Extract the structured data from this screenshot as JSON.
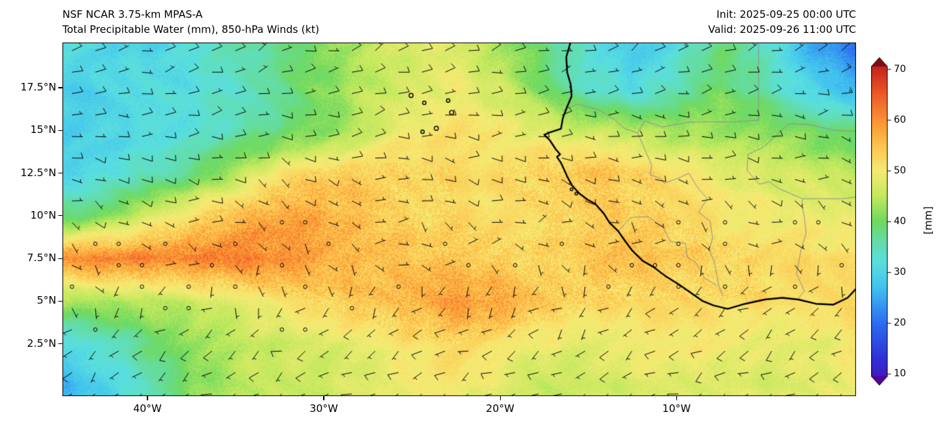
{
  "header": {
    "model_title": "NSF NCAR 3.75-km MPAS-A",
    "field_title": "Total Precipitable Water (mm), 850-hPa Winds (kt)",
    "init_time": "Init: 2025-09-25 00:00 UTC",
    "valid_time": "Valid: 2025-09-26 11:00 UTC"
  },
  "chart_data": {
    "type": "heatmap",
    "title": "Total Precipitable Water (mm), 850-hPa Winds (kt)",
    "model": "NSF NCAR 3.75-km MPAS-A",
    "init": "2025-09-25 00:00 UTC",
    "valid": "2025-09-26 11:00 UTC",
    "units": "mm",
    "overlay": "850-hPa wind barbs (kt)",
    "lon_range": [
      -44.82,
      0.18
    ],
    "lat_range": [
      -0.56,
      20.15
    ],
    "x_ticks": {
      "values": [
        -40,
        -30,
        -20,
        -10
      ],
      "labels": [
        "40°W",
        "30°W",
        "20°W",
        "10°W"
      ]
    },
    "y_ticks": {
      "values": [
        17.5,
        15,
        12.5,
        10,
        7.5,
        5,
        2.5
      ],
      "labels": [
        "17.5°N",
        "15°N",
        "12.5°N",
        "10°N",
        "7.5°N",
        "5°N",
        "2.5°N"
      ]
    },
    "colorbar": {
      "unit_label": "[mm]",
      "tick_values": [
        10,
        20,
        30,
        40,
        50,
        60,
        70
      ],
      "body_range": [
        9.5,
        70.5
      ],
      "extend": "both"
    },
    "colormap_stops": [
      [
        5,
        "#56009d"
      ],
      [
        13,
        "#3130d8"
      ],
      [
        20,
        "#2b6df2"
      ],
      [
        27,
        "#41c2ef"
      ],
      [
        32,
        "#5adfdf"
      ],
      [
        37,
        "#66dc9a"
      ],
      [
        40,
        "#6ed95f"
      ],
      [
        45,
        "#c3e95e"
      ],
      [
        50,
        "#f6ea74"
      ],
      [
        55,
        "#fcc44e"
      ],
      [
        60,
        "#fa9133"
      ],
      [
        65,
        "#ee5c27"
      ],
      [
        70,
        "#c9271e"
      ],
      [
        75,
        "#7e0d12"
      ]
    ],
    "tpw_grid": {
      "lons": [
        -45,
        -42.5,
        -40,
        -37.5,
        -35,
        -32.5,
        -30,
        -27.5,
        -25,
        -22.5,
        -20,
        -17.5,
        -15,
        -12.5,
        -10,
        -7.5,
        -5,
        -2.5,
        0
      ],
      "lats": [
        20,
        17.5,
        15,
        12.5,
        10,
        7.5,
        5,
        2.5,
        0
      ],
      "values_mm": [
        [
          31,
          31,
          30,
          32,
          35,
          38,
          42,
          45,
          47,
          48,
          44,
          38,
          32,
          28,
          32,
          39,
          33,
          26,
          21
        ],
        [
          29,
          30,
          31,
          32,
          34,
          37,
          41,
          45,
          48,
          49,
          46,
          40,
          34,
          31,
          34,
          40,
          36,
          30,
          25
        ],
        [
          28,
          30,
          31,
          33,
          35,
          38,
          41,
          46,
          50,
          51,
          50,
          48,
          46,
          44,
          43,
          43,
          42,
          40,
          38
        ],
        [
          29,
          31,
          34,
          38,
          44,
          50,
          54,
          54,
          53,
          52,
          52,
          54,
          55,
          53,
          51,
          49,
          47,
          46,
          44
        ],
        [
          38,
          40,
          46,
          52,
          56,
          58,
          57,
          55,
          53,
          52,
          51,
          52,
          54,
          53,
          52,
          51,
          50,
          49,
          48
        ],
        [
          59,
          61,
          61,
          62,
          62,
          60,
          58,
          56,
          55,
          54,
          53,
          53,
          54,
          55,
          54,
          53,
          52,
          52,
          51
        ],
        [
          44,
          43,
          44,
          46,
          48,
          50,
          53,
          55,
          57,
          59,
          58,
          55,
          53,
          52,
          52,
          52,
          52,
          51,
          52
        ],
        [
          31,
          33,
          38,
          43,
          45,
          46,
          47,
          49,
          51,
          52,
          50,
          49,
          48,
          49,
          50,
          50,
          49,
          48,
          50
        ],
        [
          26,
          29,
          35,
          41,
          44,
          45,
          46,
          48,
          49,
          50,
          48,
          46,
          46,
          47,
          48,
          48,
          47,
          47,
          49
        ]
      ]
    },
    "wind_grid": {
      "lons": [
        -45,
        -42.5,
        -40,
        -37.5,
        -35,
        -32.5,
        -30,
        -27.5,
        -25,
        -22.5,
        -20,
        -17.5,
        -15,
        -12.5,
        -10,
        -7.5,
        -5,
        -2.5,
        0
      ],
      "lats": [
        20,
        17.5,
        15,
        12.5,
        10,
        7.5,
        5,
        2.5,
        0
      ],
      "u_kt": [
        [
          -6,
          -7,
          -8,
          -8,
          -7,
          -6,
          -5,
          -6,
          -7,
          -8,
          -8,
          -7,
          -6,
          -8,
          -9,
          -8,
          -7,
          -8,
          -9
        ],
        [
          -8,
          -9,
          -8,
          -7,
          -8,
          -9,
          -8,
          -7,
          -8,
          -9,
          -8,
          -8,
          -7,
          -8,
          -9,
          -8,
          -8,
          -9,
          -10
        ],
        [
          -9,
          -8,
          -9,
          -10,
          -9,
          -8,
          -9,
          -10,
          -9,
          -8,
          -9,
          -10,
          -9,
          -8,
          -8,
          -9,
          -8,
          -8,
          -9
        ],
        [
          -8,
          -7,
          -8,
          -9,
          -8,
          -7,
          -8,
          -7,
          -8,
          -9,
          -8,
          -7,
          -8,
          -7,
          -8,
          -7,
          -6,
          -7,
          -8
        ],
        [
          -5,
          -4,
          -5,
          -6,
          -5,
          -4,
          -3,
          -4,
          -5,
          -4,
          -5,
          -4,
          -5,
          -4,
          -3,
          -4,
          -5,
          -4,
          -5
        ],
        [
          -3,
          -2,
          -3,
          -4,
          -3,
          -2,
          -1,
          -2,
          -3,
          -2,
          -1,
          -2,
          -3,
          -2,
          -1,
          -2,
          -3,
          -2,
          -3
        ],
        [
          -1,
          0,
          1,
          2,
          1,
          0,
          1,
          2,
          3,
          2,
          3,
          4,
          3,
          4,
          5,
          4,
          5,
          4,
          5
        ],
        [
          3,
          4,
          5,
          4,
          5,
          6,
          5,
          4,
          5,
          6,
          5,
          6,
          5,
          6,
          7,
          6,
          5,
          6,
          7
        ],
        [
          5,
          6,
          5,
          6,
          7,
          6,
          5,
          6,
          7,
          6,
          7,
          6,
          7,
          6,
          5,
          6,
          7,
          6,
          7
        ]
      ],
      "v_kt": [
        [
          -3,
          -3,
          -2,
          -3,
          -4,
          -3,
          -2,
          -2,
          -3,
          -4,
          -3,
          -2,
          -3,
          -4,
          -3,
          -2,
          -3,
          -4,
          -5
        ],
        [
          -2,
          -1,
          -2,
          -3,
          -2,
          -1,
          -2,
          -3,
          -2,
          -1,
          -2,
          -3,
          -2,
          -2,
          -1,
          -2,
          -3,
          -2,
          -2
        ],
        [
          0,
          1,
          0,
          -1,
          0,
          1,
          0,
          -1,
          0,
          1,
          0,
          -1,
          0,
          1,
          0,
          -1,
          0,
          1,
          0
        ],
        [
          2,
          1,
          2,
          1,
          2,
          3,
          2,
          1,
          2,
          1,
          2,
          3,
          2,
          1,
          2,
          1,
          2,
          1,
          2
        ],
        [
          2,
          3,
          2,
          1,
          2,
          3,
          2,
          1,
          2,
          3,
          2,
          1,
          2,
          3,
          2,
          1,
          2,
          3,
          2
        ],
        [
          1,
          2,
          1,
          0,
          1,
          2,
          3,
          2,
          1,
          0,
          1,
          2,
          1,
          0,
          1,
          2,
          1,
          2,
          1
        ],
        [
          3,
          4,
          3,
          2,
          3,
          4,
          3,
          4,
          3,
          4,
          5,
          4,
          3,
          4,
          5,
          4,
          3,
          4,
          5
        ],
        [
          4,
          3,
          4,
          5,
          4,
          3,
          4,
          5,
          4,
          3,
          4,
          5,
          4,
          3,
          4,
          5,
          4,
          5,
          4
        ],
        [
          3,
          4,
          3,
          2,
          3,
          4,
          3,
          2,
          3,
          4,
          3,
          4,
          3,
          4,
          3,
          4,
          3,
          4,
          3
        ]
      ]
    },
    "geo": {
      "coastline": [
        [
          -16.0,
          20.2
        ],
        [
          -16.25,
          19.3
        ],
        [
          -16.2,
          18.4
        ],
        [
          -16.0,
          17.7
        ],
        [
          -15.95,
          17.0
        ],
        [
          -16.2,
          16.4
        ],
        [
          -16.45,
          15.7
        ],
        [
          -16.55,
          15.1
        ],
        [
          -17.15,
          14.9
        ],
        [
          -17.5,
          14.75
        ],
        [
          -17.2,
          14.45
        ],
        [
          -16.85,
          13.9
        ],
        [
          -16.6,
          13.6
        ],
        [
          -16.78,
          13.45
        ],
        [
          -16.55,
          13.1
        ],
        [
          -16.35,
          12.65
        ],
        [
          -16.2,
          12.3
        ],
        [
          -15.9,
          11.75
        ],
        [
          -15.5,
          11.3
        ],
        [
          -15.05,
          10.95
        ],
        [
          -14.6,
          10.7
        ],
        [
          -14.1,
          10.1
        ],
        [
          -13.8,
          9.6
        ],
        [
          -13.3,
          9.1
        ],
        [
          -12.9,
          8.5
        ],
        [
          -12.5,
          7.95
        ],
        [
          -11.9,
          7.35
        ],
        [
          -11.3,
          7.0
        ],
        [
          -10.6,
          6.45
        ],
        [
          -9.9,
          6.0
        ],
        [
          -9.2,
          5.5
        ],
        [
          -8.5,
          5.0
        ],
        [
          -7.9,
          4.75
        ],
        [
          -7.1,
          4.55
        ],
        [
          -6.1,
          4.85
        ],
        [
          -5.0,
          5.1
        ],
        [
          -4.0,
          5.2
        ],
        [
          -3.1,
          5.1
        ],
        [
          -2.1,
          4.85
        ],
        [
          -1.1,
          4.8
        ],
        [
          -0.3,
          5.2
        ],
        [
          0.2,
          5.75
        ]
      ],
      "islands": [
        [
          -25.05,
          17.05,
          3
        ],
        [
          -24.3,
          16.62,
          2.5
        ],
        [
          -22.95,
          16.75,
          2.5
        ],
        [
          -22.75,
          16.05,
          3
        ],
        [
          -23.62,
          15.12,
          3
        ],
        [
          -24.4,
          14.92,
          2.5
        ],
        [
          -15.95,
          11.55,
          2
        ],
        [
          -15.68,
          11.3,
          2
        ]
      ],
      "borders": [
        [
          [
            -5.35,
            20.2
          ],
          [
            -5.35,
            15.6
          ],
          [
            -6.7,
            15.5
          ],
          [
            -9.2,
            15.5
          ],
          [
            -10.8,
            15.2
          ],
          [
            -11.8,
            15.55
          ],
          [
            -12.2,
            14.85
          ]
        ],
        [
          [
            -16.45,
            16.15
          ],
          [
            -15.6,
            16.55
          ],
          [
            -14.4,
            16.2
          ],
          [
            -13.5,
            15.6
          ],
          [
            -12.9,
            15.1
          ],
          [
            -12.2,
            14.85
          ]
        ],
        [
          [
            -12.2,
            14.85
          ],
          [
            -11.8,
            13.9
          ],
          [
            -11.4,
            12.95
          ],
          [
            -11.5,
            12.4
          ],
          [
            -10.9,
            12.2
          ],
          [
            -10.7,
            11.9
          ]
        ],
        [
          [
            -10.7,
            11.9
          ],
          [
            -9.8,
            12.25
          ],
          [
            -9.3,
            12.5
          ],
          [
            -8.8,
            11.65
          ],
          [
            -8.25,
            11.0
          ],
          [
            -8.75,
            10.2
          ],
          [
            -8.1,
            9.7
          ],
          [
            -7.95,
            8.7
          ],
          [
            -8.15,
            8.0
          ],
          [
            -7.85,
            7.3
          ],
          [
            -7.6,
            5.9
          ],
          [
            -7.4,
            5.3
          ]
        ],
        [
          [
            -3.1,
            5.15
          ],
          [
            -2.75,
            5.6
          ],
          [
            -3.2,
            6.6
          ],
          [
            -2.95,
            7.95
          ],
          [
            -2.65,
            9.0
          ],
          [
            -2.75,
            9.9
          ],
          [
            -2.9,
            10.7
          ],
          [
            -2.85,
            11.0
          ]
        ],
        [
          [
            -2.85,
            11.0
          ],
          [
            -1.6,
            11.0
          ],
          [
            -0.6,
            11.0
          ],
          [
            0.18,
            11.1
          ]
        ],
        [
          [
            -2.85,
            11.0
          ],
          [
            -4.2,
            11.6
          ],
          [
            -4.75,
            12.0
          ],
          [
            -5.3,
            11.85
          ],
          [
            -6.0,
            12.65
          ],
          [
            -5.95,
            13.6
          ],
          [
            -5.1,
            14.0
          ],
          [
            -4.3,
            14.75
          ],
          [
            -3.6,
            15.4
          ],
          [
            -2.5,
            15.35
          ],
          [
            -1.0,
            15.0
          ],
          [
            0.18,
            14.95
          ]
        ],
        [
          [
            -13.3,
            9.1
          ],
          [
            -12.6,
            9.9
          ],
          [
            -11.6,
            9.95
          ],
          [
            -10.75,
            9.3
          ],
          [
            -10.35,
            8.5
          ],
          [
            -9.5,
            8.4
          ],
          [
            -9.4,
            7.6
          ],
          [
            -8.9,
            7.25
          ],
          [
            -8.4,
            6.35
          ],
          [
            -7.75,
            5.95
          ]
        ]
      ]
    }
  }
}
